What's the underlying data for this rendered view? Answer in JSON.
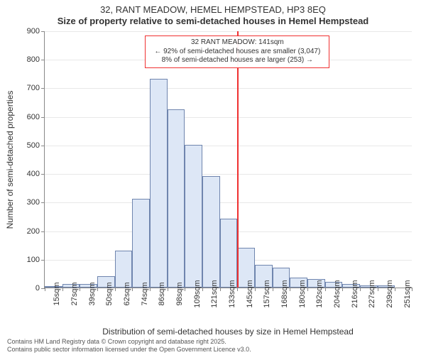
{
  "chart": {
    "type": "histogram",
    "title_line1": "32, RANT MEADOW, HEMEL HEMPSTEAD, HP3 8EQ",
    "title_line2": "Size of property relative to semi-detached houses in Hemel Hempstead",
    "y_axis_label": "Number of semi-detached properties",
    "x_axis_label": "Distribution of semi-detached houses by size in Hemel Hempstead",
    "background_color": "#ffffff",
    "grid_color": "#e8e8e8",
    "axis_color": "#888888",
    "bar_fill": "#dde7f6",
    "bar_border": "#6f85ae",
    "marker_color": "#f03030",
    "title_fontsize": 13,
    "label_fontsize": 12,
    "tick_fontsize": 11,
    "annotation_fontsize": 10,
    "y_ticks": [
      0,
      100,
      200,
      300,
      400,
      500,
      600,
      700,
      800,
      900
    ],
    "ylim": [
      0,
      900
    ],
    "x_tick_labels": [
      "15sqm",
      "27sqm",
      "39sqm",
      "50sqm",
      "62sqm",
      "74sqm",
      "86sqm",
      "98sqm",
      "109sqm",
      "121sqm",
      "133sqm",
      "145sqm",
      "157sqm",
      "168sqm",
      "180sqm",
      "192sqm",
      "204sqm",
      "216sqm",
      "227sqm",
      "239sqm",
      "251sqm"
    ],
    "bars": [
      5,
      12,
      12,
      40,
      130,
      310,
      730,
      625,
      500,
      390,
      240,
      140,
      80,
      70,
      35,
      30,
      20,
      12,
      8,
      8,
      0
    ],
    "bar_count": 21,
    "marker": {
      "bin_index": 11,
      "label_property": "32 RANT MEADOW: 141sqm",
      "label_smaller": "← 92% of semi-detached houses are smaller (3,047)",
      "label_larger": "8% of semi-detached houses are larger (253) →"
    },
    "footer_line1": "Contains HM Land Registry data © Crown copyright and database right 2025.",
    "footer_line2": "Contains public sector information licensed under the Open Government Licence v3.0."
  }
}
